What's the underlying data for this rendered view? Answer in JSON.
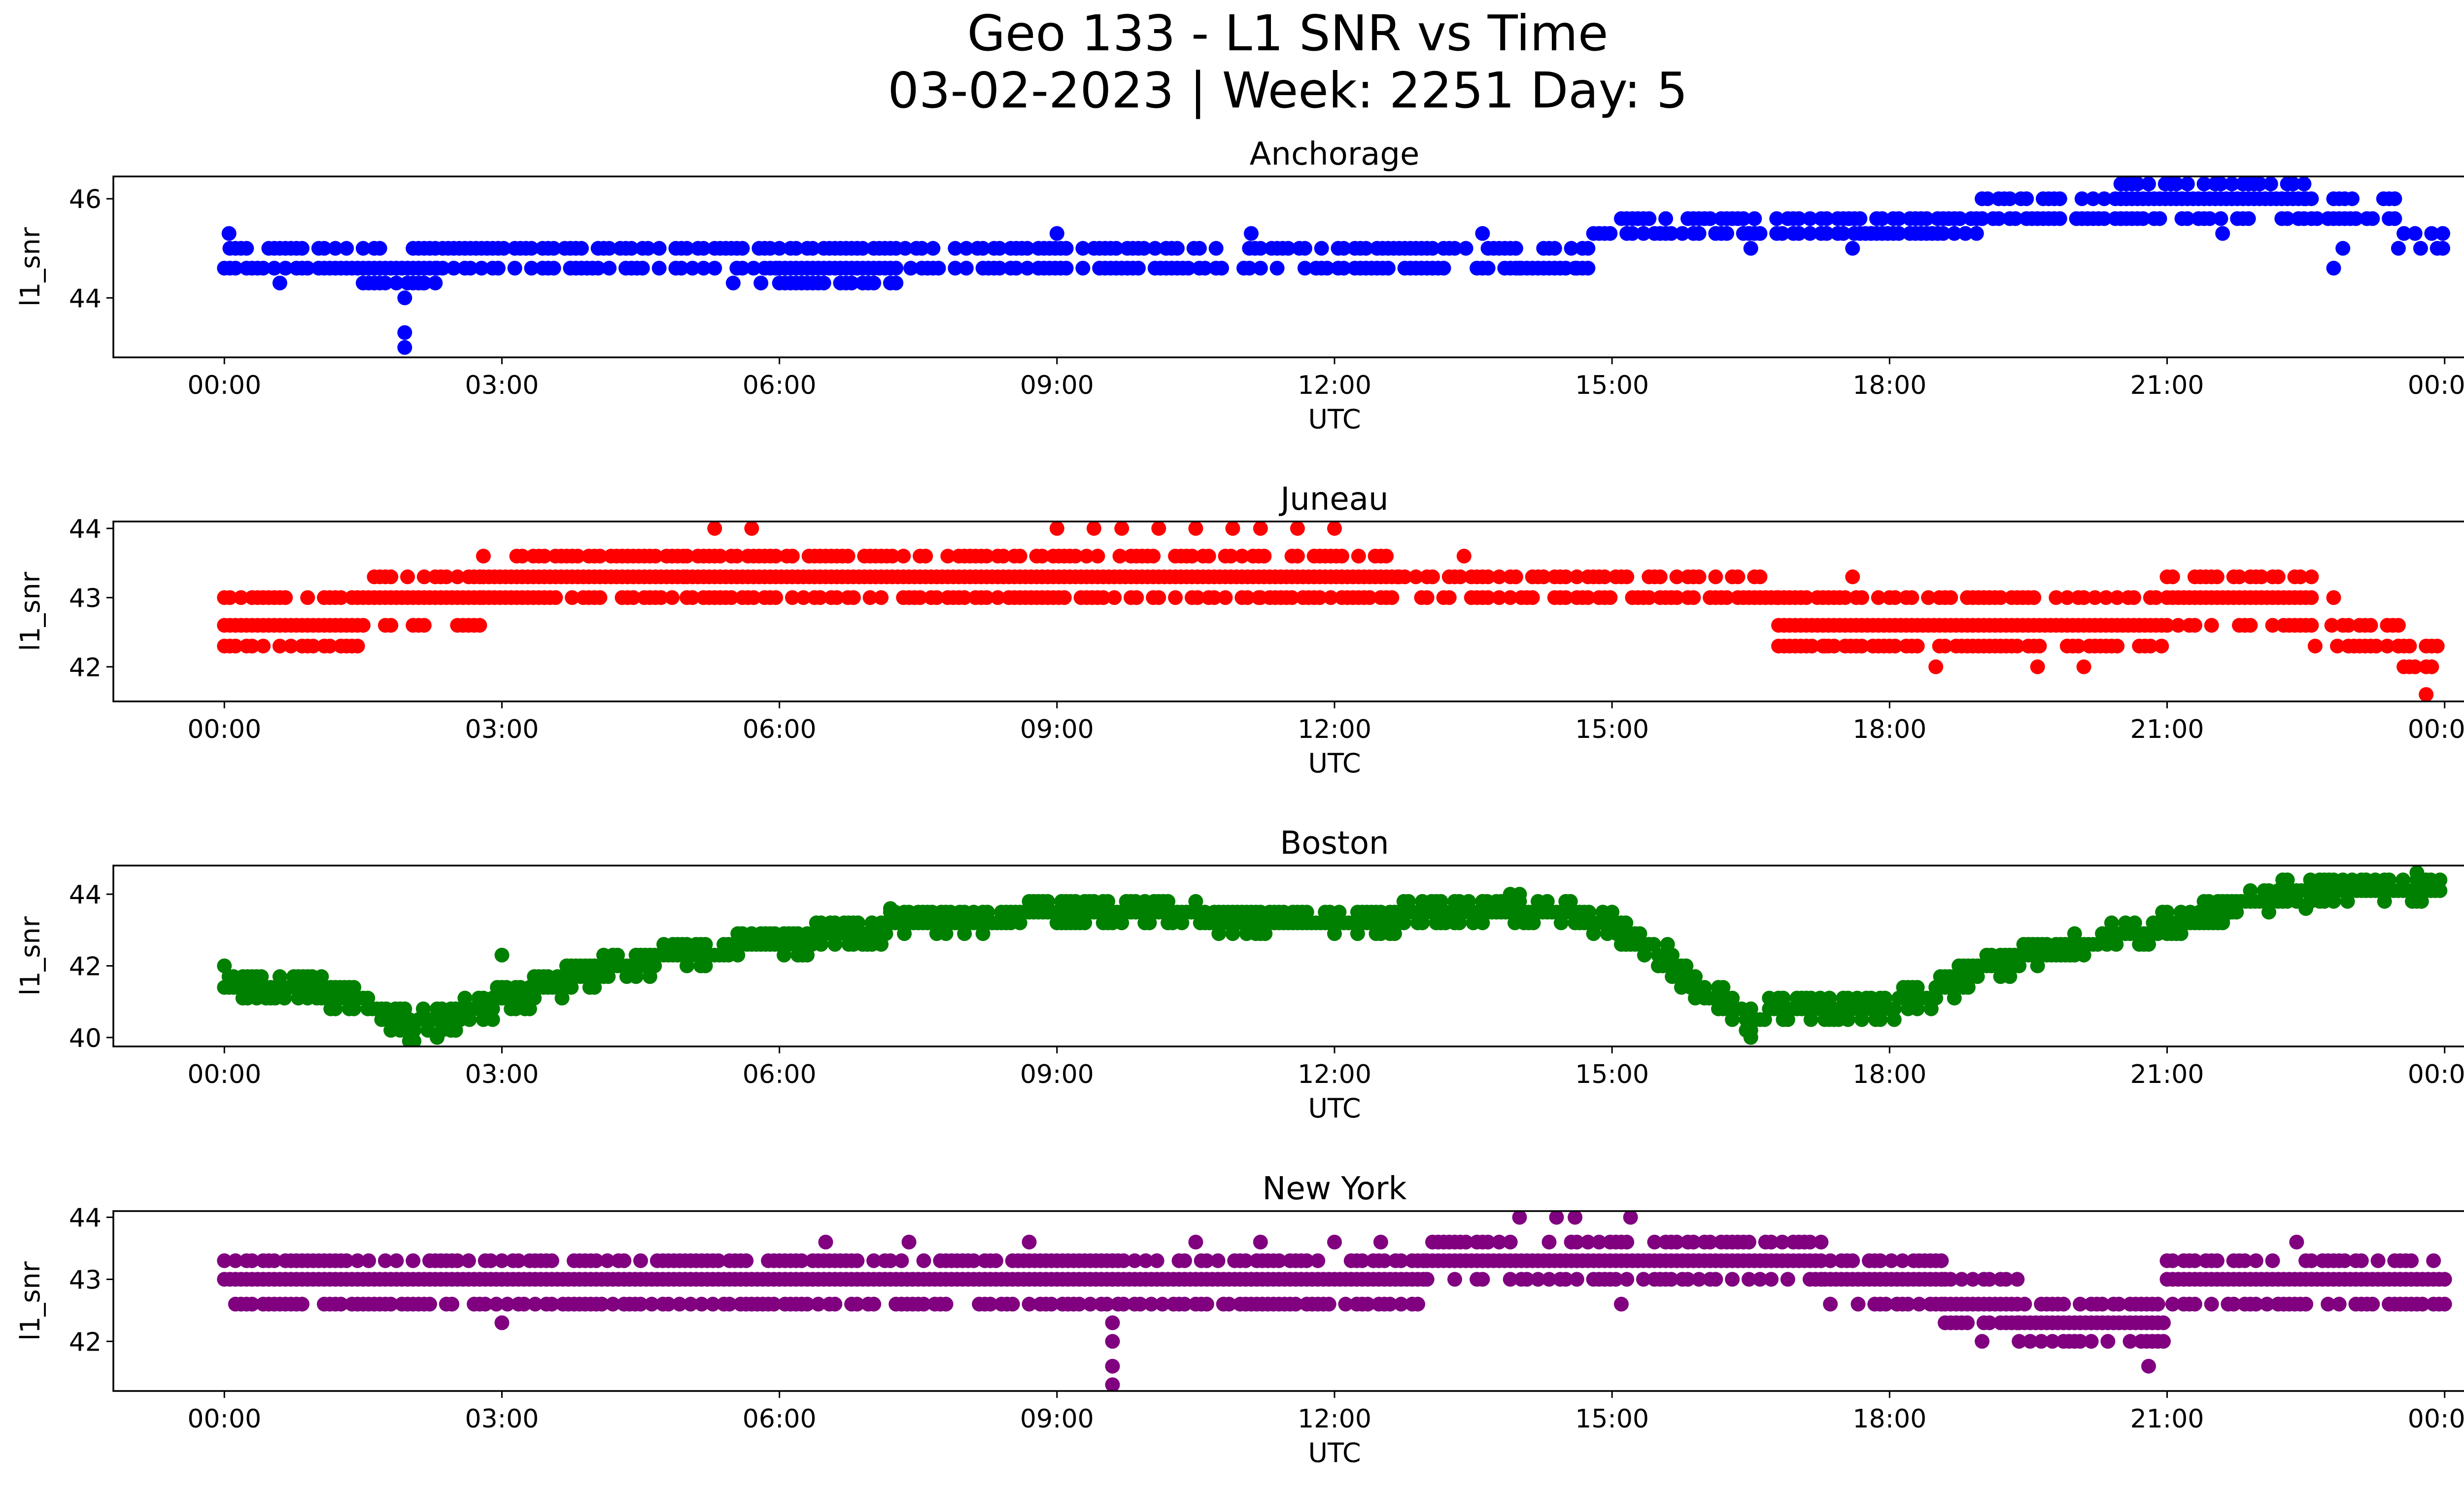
{
  "figure": {
    "title_line1": "Geo 133 - L1 SNR vs Time",
    "title_line2": "03-02-2023 | Week: 2251 Day: 5"
  },
  "chart_data": [
    {
      "type": "scatter",
      "title": "Anchorage",
      "xlabel": "UTC",
      "ylabel": "l1_snr",
      "color": "#0000ff",
      "x_unit": "hour_utc",
      "xticks": [
        "00:00",
        "03:00",
        "06:00",
        "09:00",
        "12:00",
        "15:00",
        "18:00",
        "21:00",
        "00:00"
      ],
      "xlim": [
        -1.2,
        25.2
      ],
      "ylim": [
        42.8,
        46.45
      ],
      "yticks": [
        44,
        46
      ],
      "grid": false,
      "series": [
        {
          "values_hhmm_levels": [
            {
              "start": 0.0,
              "end": 1.5,
              "levels": [
                44.6,
                45.0
              ],
              "step": 0.06
            },
            {
              "start": 1.5,
              "end": 2.3,
              "levels": [
                44.3,
                44.6,
                45.0
              ],
              "step": 0.06
            },
            {
              "start": 2.3,
              "end": 6.0,
              "levels": [
                44.6,
                45.0
              ],
              "step": 0.06
            },
            {
              "start": 6.0,
              "end": 7.3,
              "levels": [
                44.3,
                44.6,
                45.0
              ],
              "step": 0.06
            },
            {
              "start": 7.3,
              "end": 14.8,
              "levels": [
                44.6,
                45.0
              ],
              "step": 0.06
            },
            {
              "start": 14.8,
              "end": 19.0,
              "levels": [
                45.3,
                45.6
              ],
              "step": 0.06
            },
            {
              "start": 19.0,
              "end": 20.5,
              "levels": [
                45.6,
                46.0
              ],
              "step": 0.06
            },
            {
              "start": 20.5,
              "end": 22.5,
              "levels": [
                45.6,
                46.0,
                46.3
              ],
              "step": 0.06
            },
            {
              "start": 22.5,
              "end": 23.5,
              "levels": [
                45.6,
                46.0
              ],
              "step": 0.06
            },
            {
              "start": 23.5,
              "end": 24.0,
              "levels": [
                45.0,
                45.3
              ],
              "step": 0.06
            }
          ]
        }
      ],
      "outliers": [
        [
          0.05,
          45.3
        ],
        [
          0.6,
          44.3
        ],
        [
          1.95,
          44.0
        ],
        [
          1.95,
          43.3
        ],
        [
          1.95,
          43.0
        ],
        [
          2.15,
          44.3
        ],
        [
          5.5,
          44.3
        ],
        [
          5.8,
          44.3
        ],
        [
          6.3,
          44.3
        ],
        [
          14.0,
          44.6
        ],
        [
          14.6,
          44.6
        ],
        [
          16.5,
          45.0
        ],
        [
          17.6,
          45.0
        ],
        [
          22.8,
          44.6
        ],
        [
          22.9,
          45.0
        ],
        [
          23.0,
          46.0
        ],
        [
          9.0,
          45.3
        ],
        [
          13.6,
          45.3
        ],
        [
          11.1,
          45.3
        ],
        [
          21.6,
          45.3
        ]
      ]
    },
    {
      "type": "scatter",
      "title": "Juneau",
      "xlabel": "UTC",
      "ylabel": "l1_snr",
      "color": "#ff0000",
      "xticks": [
        "00:00",
        "03:00",
        "06:00",
        "09:00",
        "12:00",
        "15:00",
        "18:00",
        "21:00",
        "00:00"
      ],
      "xlim": [
        -1.2,
        25.2
      ],
      "ylim": [
        41.5,
        44.1
      ],
      "yticks": [
        42,
        43,
        44
      ],
      "grid": false,
      "series": [
        {
          "values_hhmm_levels": [
            {
              "start": 0.0,
              "end": 1.5,
              "levels": [
                42.3,
                42.6,
                43.0
              ],
              "step": 0.06
            },
            {
              "start": 1.5,
              "end": 2.8,
              "levels": [
                42.6,
                43.0,
                43.3
              ],
              "step": 0.06
            },
            {
              "start": 2.8,
              "end": 5.0,
              "levels": [
                43.0,
                43.3,
                43.6
              ],
              "step": 0.06
            },
            {
              "start": 5.0,
              "end": 12.7,
              "levels": [
                43.0,
                43.3,
                43.6
              ],
              "step": 0.06
            },
            {
              "start": 12.7,
              "end": 16.8,
              "levels": [
                43.0,
                43.3
              ],
              "step": 0.06
            },
            {
              "start": 16.8,
              "end": 21.0,
              "levels": [
                42.3,
                42.6,
                43.0
              ],
              "step": 0.06
            },
            {
              "start": 21.0,
              "end": 22.6,
              "levels": [
                42.6,
                43.0,
                43.3
              ],
              "step": 0.06
            },
            {
              "start": 22.6,
              "end": 23.5,
              "levels": [
                42.3,
                42.6
              ],
              "step": 0.06
            },
            {
              "start": 23.5,
              "end": 24.0,
              "levels": [
                42.0,
                42.3
              ],
              "step": 0.06
            }
          ]
        }
      ],
      "outliers": [
        [
          5.3,
          44.0
        ],
        [
          5.7,
          44.0
        ],
        [
          9.0,
          44.0
        ],
        [
          9.4,
          44.0
        ],
        [
          9.7,
          44.0
        ],
        [
          10.1,
          44.0
        ],
        [
          10.5,
          44.0
        ],
        [
          10.9,
          44.0
        ],
        [
          11.2,
          44.0
        ],
        [
          11.6,
          44.0
        ],
        [
          12.0,
          44.0
        ],
        [
          11.2,
          43.0
        ],
        [
          13.4,
          43.6
        ],
        [
          17.6,
          43.3
        ],
        [
          18.5,
          42.0
        ],
        [
          19.6,
          42.0
        ],
        [
          20.1,
          42.0
        ],
        [
          17.3,
          42.3
        ],
        [
          23.8,
          41.6
        ],
        [
          22.8,
          43.0
        ]
      ]
    },
    {
      "type": "scatter",
      "title": "Boston",
      "xlabel": "UTC",
      "ylabel": "l1_snr",
      "color": "#008000",
      "xticks": [
        "00:00",
        "03:00",
        "06:00",
        "09:00",
        "12:00",
        "15:00",
        "18:00",
        "21:00",
        "00:00"
      ],
      "xlim": [
        -1.2,
        25.2
      ],
      "ylim": [
        39.75,
        44.8
      ],
      "yticks": [
        40,
        42,
        44
      ],
      "grid": false,
      "series": [
        {
          "trend": [
            [
              0.0,
              41.4
            ],
            [
              1.0,
              41.3
            ],
            [
              1.6,
              40.9
            ],
            [
              2.0,
              40.3
            ],
            [
              2.5,
              40.6
            ],
            [
              3.0,
              41.0
            ],
            [
              4.0,
              41.8
            ],
            [
              5.0,
              42.3
            ],
            [
              6.0,
              42.6
            ],
            [
              7.0,
              43.0
            ],
            [
              8.0,
              43.3
            ],
            [
              9.0,
              43.4
            ],
            [
              12.0,
              43.3
            ],
            [
              13.5,
              43.4
            ],
            [
              14.3,
              43.5
            ],
            [
              15.0,
              43.1
            ],
            [
              15.5,
              42.4
            ],
            [
              16.0,
              41.3
            ],
            [
              16.5,
              40.5
            ],
            [
              17.0,
              40.9
            ],
            [
              18.0,
              40.9
            ],
            [
              18.5,
              41.2
            ],
            [
              19.0,
              41.9
            ],
            [
              20.0,
              42.6
            ],
            [
              21.0,
              43.1
            ],
            [
              21.5,
              43.5
            ],
            [
              22.0,
              43.9
            ],
            [
              23.0,
              44.1
            ],
            [
              24.0,
              44.1
            ]
          ],
          "spread": 0.3
        }
      ],
      "outliers": [
        [
          0.0,
          42.0
        ],
        [
          2.3,
          40.0
        ],
        [
          16.5,
          40.0
        ],
        [
          3.0,
          42.3
        ],
        [
          7.2,
          43.6
        ],
        [
          8.9,
          43.6
        ],
        [
          13.9,
          44.0
        ],
        [
          14.0,
          44.0
        ],
        [
          23.7,
          44.6
        ],
        [
          22.5,
          43.6
        ],
        [
          21.6,
          43.3
        ]
      ]
    },
    {
      "type": "scatter",
      "title": "New York",
      "xlabel": "UTC",
      "ylabel": "l1_snr",
      "color": "#800080",
      "xticks": [
        "00:00",
        "03:00",
        "06:00",
        "09:00",
        "12:00",
        "15:00",
        "18:00",
        "21:00",
        "00:00"
      ],
      "xlim": [
        -1.2,
        25.2
      ],
      "ylim": [
        41.2,
        44.1
      ],
      "yticks": [
        42,
        43,
        44
      ],
      "grid": false,
      "series": [
        {
          "values_hhmm_levels": [
            {
              "start": 0.0,
              "end": 9.6,
              "levels": [
                42.6,
                43.0,
                43.3
              ],
              "step": 0.06
            },
            {
              "start": 9.6,
              "end": 13.0,
              "levels": [
                42.6,
                43.0,
                43.3
              ],
              "step": 0.06
            },
            {
              "start": 13.0,
              "end": 17.3,
              "levels": [
                43.0,
                43.3,
                43.6
              ],
              "step": 0.06
            },
            {
              "start": 17.3,
              "end": 18.6,
              "levels": [
                42.6,
                43.0,
                43.3
              ],
              "step": 0.06
            },
            {
              "start": 18.6,
              "end": 19.4,
              "levels": [
                42.3,
                42.6,
                43.0
              ],
              "step": 0.06
            },
            {
              "start": 19.4,
              "end": 21.0,
              "levels": [
                42.0,
                42.3,
                42.6
              ],
              "step": 0.06
            },
            {
              "start": 21.0,
              "end": 24.0,
              "levels": [
                42.6,
                43.0,
                43.3
              ],
              "step": 0.06
            }
          ]
        }
      ],
      "outliers": [
        [
          3.0,
          42.3
        ],
        [
          6.5,
          43.6
        ],
        [
          7.4,
          43.6
        ],
        [
          8.7,
          43.6
        ],
        [
          9.6,
          42.0
        ],
        [
          9.6,
          41.6
        ],
        [
          9.6,
          41.3
        ],
        [
          9.6,
          42.3
        ],
        [
          10.5,
          43.6
        ],
        [
          11.2,
          43.6
        ],
        [
          12.0,
          43.6
        ],
        [
          12.5,
          43.6
        ],
        [
          14.0,
          44.0
        ],
        [
          14.4,
          44.0
        ],
        [
          14.6,
          44.0
        ],
        [
          15.2,
          44.0
        ],
        [
          15.1,
          42.6
        ],
        [
          19.0,
          42.0
        ],
        [
          20.8,
          41.6
        ],
        [
          22.4,
          43.6
        ]
      ]
    }
  ]
}
